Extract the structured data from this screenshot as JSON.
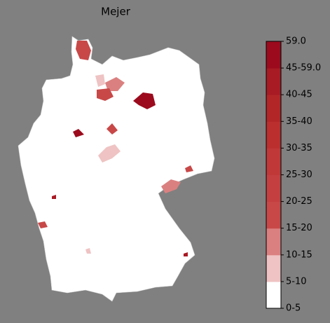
{
  "title": "Mejer",
  "colorbar": {
    "labels": [
      "0-5",
      "5-10",
      "10-15",
      "15-20",
      "20-25",
      "25-30",
      "30-35",
      "35-40",
      "40-45",
      "45-59.0",
      "59.0"
    ],
    "colors": [
      "#ffffff",
      "#efc3c3",
      "#db8080",
      "#c84848",
      "#c44040",
      "#c03838",
      "#bb2f2f",
      "#b32628",
      "#a91b24",
      "#9b0b1d"
    ]
  }
}
